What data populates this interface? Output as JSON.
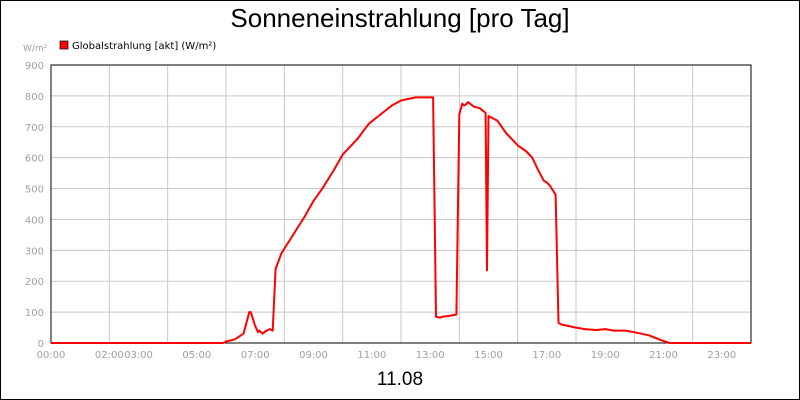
{
  "chart_data": {
    "type": "line",
    "title": "Sonneneinstrahlung [pro Tag]",
    "ylabel": "W/m²",
    "xlabel_bottom": "11.08",
    "x_tick_labels": [
      "00:00",
      "02:00",
      "03:00",
      "05:00",
      "07:00",
      "09:00",
      "11:00",
      "13:00",
      "15:00",
      "17:00",
      "19:00",
      "21:00",
      "23:00"
    ],
    "x_tick_hours": [
      0,
      2,
      3,
      5,
      7,
      9,
      11,
      13,
      15,
      17,
      19,
      21,
      23
    ],
    "x_range_hours": [
      0,
      24
    ],
    "y_tick_labels": [
      "0",
      "100",
      "200",
      "300",
      "400",
      "500",
      "600",
      "700",
      "800",
      "900"
    ],
    "ylim": [
      0,
      900
    ],
    "grid": true,
    "legend": "top-left",
    "series": [
      {
        "name": "Globalstrahlung [akt] (W/m²)",
        "color": "#ff0000",
        "x_hours": [
          0,
          5.9,
          6.0,
          6.3,
          6.6,
          6.8,
          6.85,
          7.0,
          7.1,
          7.15,
          7.25,
          7.35,
          7.5,
          7.6,
          7.7,
          7.9,
          8.3,
          8.7,
          9.0,
          9.3,
          9.7,
          10.0,
          10.5,
          10.9,
          11.3,
          11.7,
          12.0,
          12.5,
          12.9,
          13.1,
          13.2,
          13.35,
          13.4,
          13.6,
          13.9,
          14.0,
          14.1,
          14.15,
          14.2,
          14.3,
          14.5,
          14.7,
          14.9,
          14.95,
          15.0,
          15.3,
          15.6,
          16.0,
          16.3,
          16.5,
          16.7,
          16.9,
          17.0,
          17.1,
          17.3,
          17.4,
          17.5,
          18.0,
          18.3,
          18.7,
          19.0,
          19.3,
          19.7,
          20.0,
          20.5,
          20.9,
          21.2,
          24.0
        ],
        "values": [
          0,
          0,
          5,
          12,
          30,
          100,
          100,
          55,
          35,
          40,
          30,
          38,
          45,
          40,
          240,
          290,
          350,
          410,
          460,
          500,
          560,
          610,
          660,
          710,
          740,
          770,
          785,
          795,
          795,
          795,
          85,
          82,
          85,
          87,
          92,
          740,
          775,
          770,
          770,
          780,
          765,
          760,
          745,
          235,
          735,
          720,
          680,
          640,
          620,
          600,
          560,
          525,
          520,
          510,
          480,
          65,
          60,
          50,
          45,
          42,
          45,
          40,
          40,
          35,
          25,
          10,
          0,
          0
        ]
      }
    ]
  }
}
